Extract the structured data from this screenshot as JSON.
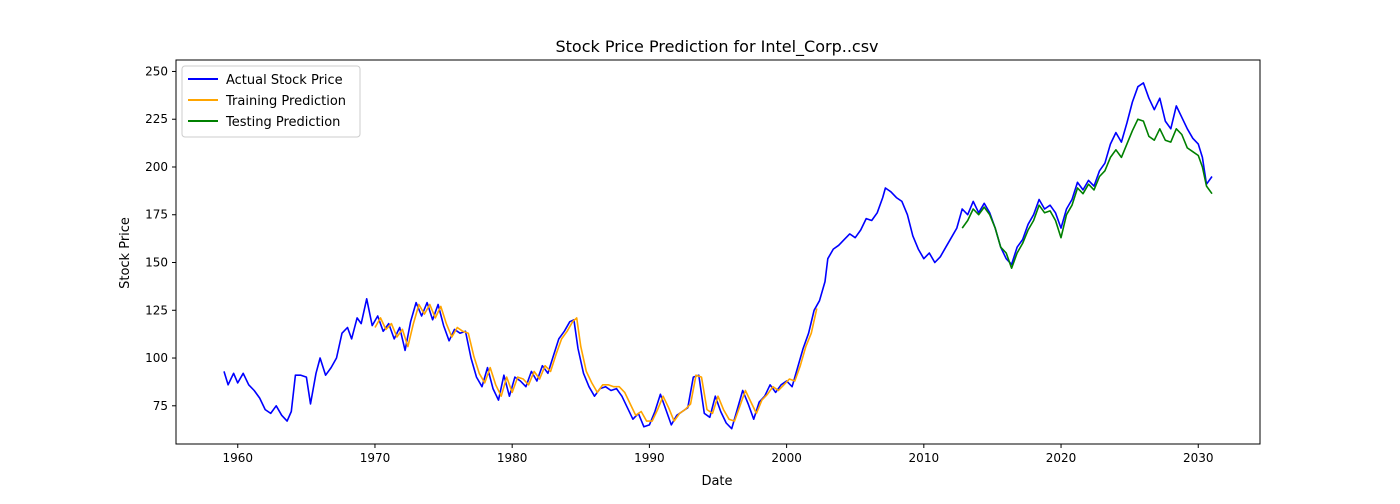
{
  "chart_data": {
    "type": "line",
    "title": "Stock Price Prediction for Intel_Corp..csv",
    "xlabel": "Date",
    "ylabel": "Stock Price",
    "xlim": [
      1955.5,
      2034.5
    ],
    "ylim": [
      55,
      256
    ],
    "x_ticks": [
      1960,
      1970,
      1980,
      1990,
      2000,
      2010,
      2020,
      2030
    ],
    "y_ticks": [
      75,
      100,
      125,
      150,
      175,
      200,
      225,
      250
    ],
    "grid": false,
    "legend_position": "top-left",
    "series": [
      {
        "name": "Actual Stock Price",
        "color": "#0000ff",
        "points": [
          [
            1959.0,
            93
          ],
          [
            1959.3,
            86
          ],
          [
            1959.7,
            92
          ],
          [
            1960.0,
            87
          ],
          [
            1960.4,
            92
          ],
          [
            1960.8,
            86
          ],
          [
            1961.2,
            83
          ],
          [
            1961.6,
            79
          ],
          [
            1962.0,
            73
          ],
          [
            1962.4,
            71
          ],
          [
            1962.8,
            75
          ],
          [
            1963.2,
            70
          ],
          [
            1963.6,
            67
          ],
          [
            1963.9,
            72
          ],
          [
            1964.2,
            91
          ],
          [
            1964.6,
            91
          ],
          [
            1965.0,
            90
          ],
          [
            1965.3,
            76
          ],
          [
            1965.7,
            92
          ],
          [
            1966.0,
            100
          ],
          [
            1966.4,
            91
          ],
          [
            1966.8,
            95
          ],
          [
            1967.2,
            100
          ],
          [
            1967.6,
            113
          ],
          [
            1968.0,
            116
          ],
          [
            1968.3,
            110
          ],
          [
            1968.7,
            121
          ],
          [
            1969.0,
            118
          ],
          [
            1969.4,
            131
          ],
          [
            1969.8,
            117
          ],
          [
            1970.2,
            122
          ],
          [
            1970.6,
            114
          ],
          [
            1971.0,
            118
          ],
          [
            1971.4,
            110
          ],
          [
            1971.8,
            116
          ],
          [
            1972.2,
            104
          ],
          [
            1972.6,
            119
          ],
          [
            1973.0,
            129
          ],
          [
            1973.4,
            122
          ],
          [
            1973.8,
            129
          ],
          [
            1974.2,
            120
          ],
          [
            1974.6,
            128
          ],
          [
            1975.0,
            117
          ],
          [
            1975.4,
            109
          ],
          [
            1975.8,
            115
          ],
          [
            1976.2,
            113
          ],
          [
            1976.6,
            114
          ],
          [
            1977.0,
            100
          ],
          [
            1977.4,
            90
          ],
          [
            1977.8,
            85
          ],
          [
            1978.2,
            95
          ],
          [
            1978.6,
            84
          ],
          [
            1979.0,
            78
          ],
          [
            1979.4,
            91
          ],
          [
            1979.8,
            80
          ],
          [
            1980.2,
            90
          ],
          [
            1980.6,
            88
          ],
          [
            1981.0,
            85
          ],
          [
            1981.4,
            93
          ],
          [
            1981.8,
            88
          ],
          [
            1982.2,
            96
          ],
          [
            1982.6,
            92
          ],
          [
            1983.0,
            101
          ],
          [
            1983.4,
            110
          ],
          [
            1983.8,
            114
          ],
          [
            1984.2,
            119
          ],
          [
            1984.5,
            120
          ],
          [
            1984.8,
            105
          ],
          [
            1985.2,
            92
          ],
          [
            1985.6,
            85
          ],
          [
            1986.0,
            80
          ],
          [
            1986.4,
            84
          ],
          [
            1986.8,
            85
          ],
          [
            1987.2,
            83
          ],
          [
            1987.6,
            84
          ],
          [
            1988.0,
            80
          ],
          [
            1988.4,
            74
          ],
          [
            1988.8,
            68
          ],
          [
            1989.2,
            71
          ],
          [
            1989.6,
            64
          ],
          [
            1990.0,
            65
          ],
          [
            1990.4,
            72
          ],
          [
            1990.8,
            81
          ],
          [
            1991.2,
            73
          ],
          [
            1991.6,
            65
          ],
          [
            1992.0,
            70
          ],
          [
            1992.4,
            72
          ],
          [
            1992.8,
            74
          ],
          [
            1993.2,
            90
          ],
          [
            1993.6,
            91
          ],
          [
            1994.0,
            71
          ],
          [
            1994.4,
            69
          ],
          [
            1994.8,
            80
          ],
          [
            1995.2,
            72
          ],
          [
            1995.6,
            66
          ],
          [
            1996.0,
            63
          ],
          [
            1996.4,
            73
          ],
          [
            1996.8,
            83
          ],
          [
            1997.2,
            76
          ],
          [
            1997.6,
            68
          ],
          [
            1998.0,
            77
          ],
          [
            1998.4,
            80
          ],
          [
            1998.8,
            86
          ],
          [
            1999.2,
            82
          ],
          [
            1999.6,
            86
          ],
          [
            2000.0,
            88
          ],
          [
            2000.4,
            85
          ],
          [
            2000.8,
            95
          ],
          [
            2001.2,
            105
          ],
          [
            2001.6,
            113
          ],
          [
            2002.0,
            125
          ],
          [
            2002.4,
            130
          ],
          [
            2002.8,
            140
          ],
          [
            2003.0,
            152
          ],
          [
            2003.4,
            157
          ],
          [
            2003.8,
            159
          ],
          [
            2004.2,
            162
          ],
          [
            2004.6,
            165
          ],
          [
            2005.0,
            163
          ],
          [
            2005.4,
            167
          ],
          [
            2005.8,
            173
          ],
          [
            2006.2,
            172
          ],
          [
            2006.6,
            176
          ],
          [
            2007.0,
            184
          ],
          [
            2007.2,
            189
          ],
          [
            2007.6,
            187
          ],
          [
            2008.0,
            184
          ],
          [
            2008.4,
            182
          ],
          [
            2008.8,
            175
          ],
          [
            2009.2,
            164
          ],
          [
            2009.6,
            157
          ],
          [
            2010.0,
            152
          ],
          [
            2010.4,
            155
          ],
          [
            2010.8,
            150
          ],
          [
            2011.2,
            153
          ],
          [
            2011.6,
            158
          ],
          [
            2012.0,
            163
          ],
          [
            2012.4,
            168
          ],
          [
            2012.8,
            178
          ],
          [
            2013.2,
            175
          ],
          [
            2013.6,
            182
          ],
          [
            2014.0,
            176
          ],
          [
            2014.4,
            181
          ],
          [
            2014.8,
            176
          ],
          [
            2015.2,
            168
          ],
          [
            2015.6,
            158
          ],
          [
            2016.0,
            152
          ],
          [
            2016.4,
            149
          ],
          [
            2016.8,
            158
          ],
          [
            2017.2,
            162
          ],
          [
            2017.6,
            170
          ],
          [
            2018.0,
            175
          ],
          [
            2018.4,
            183
          ],
          [
            2018.8,
            178
          ],
          [
            2019.2,
            180
          ],
          [
            2019.6,
            176
          ],
          [
            2020.0,
            168
          ],
          [
            2020.4,
            178
          ],
          [
            2020.8,
            183
          ],
          [
            2021.2,
            192
          ],
          [
            2021.6,
            188
          ],
          [
            2022.0,
            193
          ],
          [
            2022.4,
            190
          ],
          [
            2022.8,
            198
          ],
          [
            2023.2,
            202
          ],
          [
            2023.6,
            212
          ],
          [
            2024.0,
            218
          ],
          [
            2024.4,
            213
          ],
          [
            2024.8,
            223
          ],
          [
            2025.2,
            234
          ],
          [
            2025.6,
            242
          ],
          [
            2026.0,
            244
          ],
          [
            2026.4,
            236
          ],
          [
            2026.8,
            230
          ],
          [
            2027.2,
            236
          ],
          [
            2027.6,
            224
          ],
          [
            2028.0,
            220
          ],
          [
            2028.4,
            232
          ],
          [
            2028.8,
            226
          ],
          [
            2029.2,
            220
          ],
          [
            2029.6,
            215
          ],
          [
            2030.0,
            212
          ],
          [
            2030.3,
            205
          ],
          [
            2030.6,
            191
          ],
          [
            2031.0,
            195
          ]
        ]
      },
      {
        "name": "Training Prediction",
        "color": "#ffa500",
        "points": [
          [
            1970.0,
            116
          ],
          [
            1970.4,
            121
          ],
          [
            1970.8,
            115
          ],
          [
            1971.2,
            118
          ],
          [
            1971.6,
            111
          ],
          [
            1972.0,
            115
          ],
          [
            1972.4,
            106
          ],
          [
            1972.8,
            118
          ],
          [
            1973.2,
            128
          ],
          [
            1973.6,
            123
          ],
          [
            1974.0,
            128
          ],
          [
            1974.4,
            121
          ],
          [
            1974.8,
            127
          ],
          [
            1975.2,
            118
          ],
          [
            1975.6,
            111
          ],
          [
            1976.0,
            116
          ],
          [
            1976.4,
            114
          ],
          [
            1976.8,
            113
          ],
          [
            1977.2,
            101
          ],
          [
            1977.6,
            92
          ],
          [
            1978.0,
            87
          ],
          [
            1978.4,
            95
          ],
          [
            1978.8,
            86
          ],
          [
            1979.2,
            80
          ],
          [
            1979.6,
            90
          ],
          [
            1980.0,
            82
          ],
          [
            1980.4,
            90
          ],
          [
            1980.8,
            89
          ],
          [
            1981.2,
            86
          ],
          [
            1981.6,
            93
          ],
          [
            1982.0,
            89
          ],
          [
            1982.4,
            96
          ],
          [
            1982.8,
            93
          ],
          [
            1983.2,
            102
          ],
          [
            1983.6,
            110
          ],
          [
            1984.0,
            114
          ],
          [
            1984.4,
            119
          ],
          [
            1984.7,
            121
          ],
          [
            1985.0,
            106
          ],
          [
            1985.4,
            93
          ],
          [
            1985.8,
            87
          ],
          [
            1986.2,
            82
          ],
          [
            1986.6,
            86
          ],
          [
            1987.0,
            86
          ],
          [
            1987.4,
            85
          ],
          [
            1987.8,
            85
          ],
          [
            1988.2,
            82
          ],
          [
            1988.6,
            76
          ],
          [
            1989.0,
            70
          ],
          [
            1989.4,
            72
          ],
          [
            1989.8,
            67
          ],
          [
            1990.2,
            67
          ],
          [
            1990.6,
            73
          ],
          [
            1991.0,
            80
          ],
          [
            1991.4,
            74
          ],
          [
            1991.8,
            67
          ],
          [
            1992.2,
            71
          ],
          [
            1992.6,
            73
          ],
          [
            1993.0,
            76
          ],
          [
            1993.4,
            91
          ],
          [
            1993.8,
            90
          ],
          [
            1994.2,
            73
          ],
          [
            1994.6,
            71
          ],
          [
            1995.0,
            80
          ],
          [
            1995.4,
            73
          ],
          [
            1995.8,
            68
          ],
          [
            1996.2,
            67
          ],
          [
            1996.6,
            75
          ],
          [
            1997.0,
            83
          ],
          [
            1997.4,
            77
          ],
          [
            1997.8,
            71
          ],
          [
            1998.2,
            78
          ],
          [
            1998.6,
            81
          ],
          [
            1999.0,
            85
          ],
          [
            1999.4,
            83
          ],
          [
            1999.8,
            86
          ],
          [
            2000.2,
            89
          ],
          [
            2000.6,
            88
          ],
          [
            2001.0,
            96
          ],
          [
            2001.4,
            106
          ],
          [
            2001.8,
            113
          ],
          [
            2002.2,
            126
          ]
        ]
      },
      {
        "name": "Testing Prediction",
        "color": "#008000",
        "points": [
          [
            2012.8,
            168
          ],
          [
            2013.2,
            172
          ],
          [
            2013.6,
            178
          ],
          [
            2014.0,
            175
          ],
          [
            2014.4,
            179
          ],
          [
            2014.8,
            175
          ],
          [
            2015.2,
            168
          ],
          [
            2015.6,
            158
          ],
          [
            2016.0,
            155
          ],
          [
            2016.4,
            147
          ],
          [
            2016.8,
            155
          ],
          [
            2017.2,
            160
          ],
          [
            2017.6,
            167
          ],
          [
            2018.0,
            172
          ],
          [
            2018.4,
            180
          ],
          [
            2018.8,
            176
          ],
          [
            2019.2,
            177
          ],
          [
            2019.6,
            172
          ],
          [
            2020.0,
            163
          ],
          [
            2020.4,
            175
          ],
          [
            2020.8,
            180
          ],
          [
            2021.2,
            189
          ],
          [
            2021.6,
            186
          ],
          [
            2022.0,
            191
          ],
          [
            2022.4,
            188
          ],
          [
            2022.8,
            195
          ],
          [
            2023.2,
            198
          ],
          [
            2023.6,
            205
          ],
          [
            2024.0,
            209
          ],
          [
            2024.4,
            205
          ],
          [
            2024.8,
            212
          ],
          [
            2025.2,
            219
          ],
          [
            2025.6,
            225
          ],
          [
            2026.0,
            224
          ],
          [
            2026.4,
            216
          ],
          [
            2026.8,
            214
          ],
          [
            2027.2,
            220
          ],
          [
            2027.6,
            214
          ],
          [
            2028.0,
            213
          ],
          [
            2028.4,
            220
          ],
          [
            2028.8,
            217
          ],
          [
            2029.2,
            210
          ],
          [
            2029.6,
            208
          ],
          [
            2030.0,
            206
          ],
          [
            2030.3,
            200
          ],
          [
            2030.6,
            190
          ],
          [
            2031.0,
            186
          ]
        ]
      }
    ]
  }
}
